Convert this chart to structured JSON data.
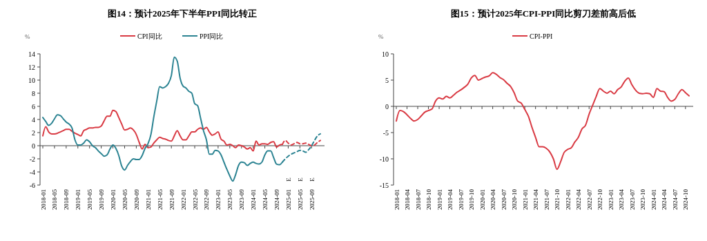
{
  "chart_data": [
    {
      "type": "line",
      "title": "图14：预计2025年下半年PPI同比转正",
      "ylabel": "%",
      "legend": "top",
      "ylim": [
        -6,
        14
      ],
      "yticks": [
        -6,
        -4,
        -2,
        0,
        2,
        4,
        6,
        8,
        10,
        12,
        14
      ],
      "categories": [
        "2018-01",
        null,
        null,
        null,
        "2018-05",
        null,
        null,
        null,
        "2018-09",
        null,
        null,
        null,
        "2019-01",
        null,
        null,
        null,
        "2019-05",
        null,
        null,
        null,
        "2019-09",
        null,
        null,
        null,
        "2020-01",
        null,
        null,
        null,
        "2020-05",
        null,
        null,
        null,
        "2020-09",
        null,
        null,
        null,
        "2021-01",
        null,
        null,
        null,
        "2021-05",
        null,
        null,
        null,
        "2021-09",
        null,
        null,
        null,
        "2022-01",
        null,
        null,
        null,
        "2022-05",
        null,
        null,
        null,
        "2022-09",
        null,
        null,
        null,
        "2023-01",
        null,
        null,
        null,
        "2023-05",
        null,
        null,
        null,
        "2023-09",
        null,
        null,
        null,
        "2024-01",
        null,
        null,
        null,
        "2024-05",
        null,
        null,
        null,
        "2024-09",
        null,
        null,
        null,
        "2025-01",
        null,
        null,
        null,
        "2025-05",
        null,
        null,
        null,
        "2025-09",
        null,
        null,
        null
      ],
      "series": [
        {
          "name": "CPI同比",
          "color": "#d93a43",
          "values": [
            1.5,
            2.9,
            2.1,
            1.8,
            1.8,
            1.9,
            2.1,
            2.3,
            2.5,
            2.5,
            2.2,
            1.9,
            1.7,
            1.5,
            2.3,
            2.5,
            2.7,
            2.7,
            2.8,
            2.8,
            3.0,
            3.8,
            4.5,
            4.5,
            5.4,
            5.2,
            4.3,
            3.3,
            2.4,
            2.5,
            2.7,
            2.4,
            1.7,
            0.5,
            -0.5,
            0.2,
            -0.3,
            -0.2,
            0.4,
            0.9,
            1.3,
            1.1,
            1.0,
            0.8,
            0.7,
            1.5,
            2.3,
            1.5,
            0.9,
            0.9,
            1.5,
            2.1,
            2.1,
            2.5,
            2.7,
            2.5,
            2.8,
            2.1,
            1.6,
            1.8,
            2.1,
            1.0,
            0.7,
            0.1,
            0.2,
            0.0,
            -0.3,
            0.1,
            0.0,
            -0.2,
            -0.5,
            -0.3,
            -0.8,
            0.7,
            0.1,
            0.3,
            0.3,
            0.2,
            0.5,
            0.6,
            -0.2,
            0.1,
            0.2,
            null,
            null,
            null,
            null,
            null,
            null,
            null,
            null,
            null,
            null,
            null,
            null,
            null
          ]
        },
        {
          "name": "PPI同比",
          "color": "#2b8392",
          "values": [
            4.3,
            3.7,
            3.1,
            3.4,
            4.1,
            4.7,
            4.6,
            4.1,
            3.6,
            3.3,
            2.7,
            0.9,
            0.1,
            0.1,
            0.4,
            0.9,
            0.6,
            0.0,
            -0.3,
            -0.8,
            -1.2,
            -1.6,
            -1.4,
            -0.5,
            0.1,
            -0.4,
            -1.5,
            -3.1,
            -3.7,
            -3.0,
            -2.4,
            -2.0,
            -2.1,
            -2.1,
            -1.5,
            -0.4,
            0.3,
            1.7,
            4.4,
            6.8,
            9.0,
            8.8,
            9.0,
            9.5,
            10.7,
            13.5,
            12.9,
            10.3,
            9.1,
            8.8,
            8.3,
            8.0,
            6.4,
            6.1,
            4.2,
            2.3,
            0.9,
            -1.3,
            -1.3,
            -0.7,
            -0.8,
            -1.4,
            -2.5,
            -3.6,
            -4.6,
            -5.4,
            -4.4,
            -3.0,
            -2.5,
            -2.6,
            -3.0,
            -2.7,
            -2.5,
            -2.7,
            -2.8,
            -2.5,
            -1.4,
            -0.8,
            -0.8,
            -1.8,
            -2.8,
            -2.9,
            -2.5,
            null,
            null,
            null,
            null,
            null,
            null,
            null,
            null,
            null,
            null,
            null,
            null,
            null
          ]
        },
        {
          "color": "#d93a43",
          "line_style": "dashed",
          "values": [
            null,
            null,
            null,
            null,
            null,
            null,
            null,
            null,
            null,
            null,
            null,
            null,
            null,
            null,
            null,
            null,
            null,
            null,
            null,
            null,
            null,
            null,
            null,
            null,
            null,
            null,
            null,
            null,
            null,
            null,
            null,
            null,
            null,
            null,
            null,
            null,
            null,
            null,
            null,
            null,
            null,
            null,
            null,
            null,
            null,
            null,
            null,
            null,
            null,
            null,
            null,
            null,
            null,
            null,
            null,
            null,
            null,
            null,
            null,
            null,
            null,
            null,
            null,
            null,
            null,
            null,
            null,
            null,
            null,
            null,
            null,
            null,
            null,
            null,
            null,
            null,
            null,
            null,
            null,
            null,
            null,
            null,
            0.2,
            0.8,
            0.4,
            0.1,
            0.3,
            0.5,
            0.3,
            0.3,
            0.4,
            0.2,
            0.0,
            0.1,
            0.5,
            0.8
          ]
        },
        {
          "color": "#2b8392",
          "line_style": "dashed",
          "values": [
            null,
            null,
            null,
            null,
            null,
            null,
            null,
            null,
            null,
            null,
            null,
            null,
            null,
            null,
            null,
            null,
            null,
            null,
            null,
            null,
            null,
            null,
            null,
            null,
            null,
            null,
            null,
            null,
            null,
            null,
            null,
            null,
            null,
            null,
            null,
            null,
            null,
            null,
            null,
            null,
            null,
            null,
            null,
            null,
            null,
            null,
            null,
            null,
            null,
            null,
            null,
            null,
            null,
            null,
            null,
            null,
            null,
            null,
            null,
            null,
            null,
            null,
            null,
            null,
            null,
            null,
            null,
            null,
            null,
            null,
            null,
            null,
            null,
            null,
            null,
            null,
            null,
            null,
            null,
            null,
            null,
            null,
            -2.5,
            -2.0,
            -1.6,
            -1.3,
            -1.1,
            -0.9,
            -0.7,
            -0.8,
            -1.0,
            -0.6,
            0.0,
            0.8,
            1.5,
            1.8
          ]
        }
      ],
      "annotations": [
        "E",
        "E",
        "E"
      ]
    },
    {
      "type": "line",
      "title": "图15：预计2025年CPI-PPI同比剪刀差前高后低",
      "ylabel": "%",
      "legend": "top",
      "ylim": [
        -15,
        10
      ],
      "yticks": [
        -15,
        -10,
        -5,
        0,
        5,
        10
      ],
      "categories": [
        "2018-01",
        null,
        null,
        "2018-04",
        null,
        null,
        "2018-07",
        null,
        null,
        "2018-10",
        null,
        null,
        "2019-01",
        null,
        null,
        "2019-04",
        null,
        null,
        "2019-07",
        null,
        null,
        "2019-10",
        null,
        null,
        "2020-01",
        null,
        null,
        "2020-04",
        null,
        null,
        "2020-07",
        null,
        null,
        "2020-10",
        null,
        null,
        "2021-01",
        null,
        null,
        "2021-04",
        null,
        null,
        "2021-07",
        null,
        null,
        "2021-10",
        null,
        null,
        "2022-01",
        null,
        null,
        "2022-04",
        null,
        null,
        "2022-07",
        null,
        null,
        "2022-10",
        null,
        null,
        "2023-01",
        null,
        null,
        "2023-04",
        null,
        null,
        "2023-07",
        null,
        null,
        "2023-10",
        null,
        null,
        "2024-01",
        null,
        null,
        "2024-04",
        null,
        null,
        "2024-07",
        null,
        null,
        "2024-10",
        null
      ],
      "series": [
        {
          "name": "CPI-PPI",
          "color": "#d93a43",
          "values": [
            -2.8,
            -0.8,
            -1.0,
            -1.6,
            -2.3,
            -2.8,
            -2.5,
            -1.8,
            -1.1,
            -0.8,
            -0.5,
            1.0,
            1.6,
            1.4,
            1.9,
            1.6,
            2.1,
            2.7,
            3.1,
            3.6,
            4.2,
            5.4,
            5.9,
            5.0,
            5.3,
            5.6,
            5.8,
            6.4,
            6.1,
            5.5,
            5.1,
            4.4,
            3.8,
            2.6,
            1.0,
            0.6,
            -0.6,
            -1.9,
            -4.0,
            -5.9,
            -7.7,
            -7.7,
            -8.0,
            -8.7,
            -10.0,
            -12.0,
            -10.6,
            -8.8,
            -8.2,
            -7.9,
            -6.8,
            -5.9,
            -4.3,
            -3.6,
            -1.5,
            0.2,
            1.9,
            3.4,
            2.9,
            2.5,
            2.9,
            2.4,
            3.2,
            3.7,
            4.8,
            5.4,
            4.1,
            3.1,
            2.5,
            2.4,
            2.5,
            2.4,
            1.7,
            3.4,
            2.9,
            2.8,
            1.7,
            1.0,
            1.3,
            2.4,
            3.2,
            2.6,
            2.0
          ]
        }
      ]
    }
  ]
}
